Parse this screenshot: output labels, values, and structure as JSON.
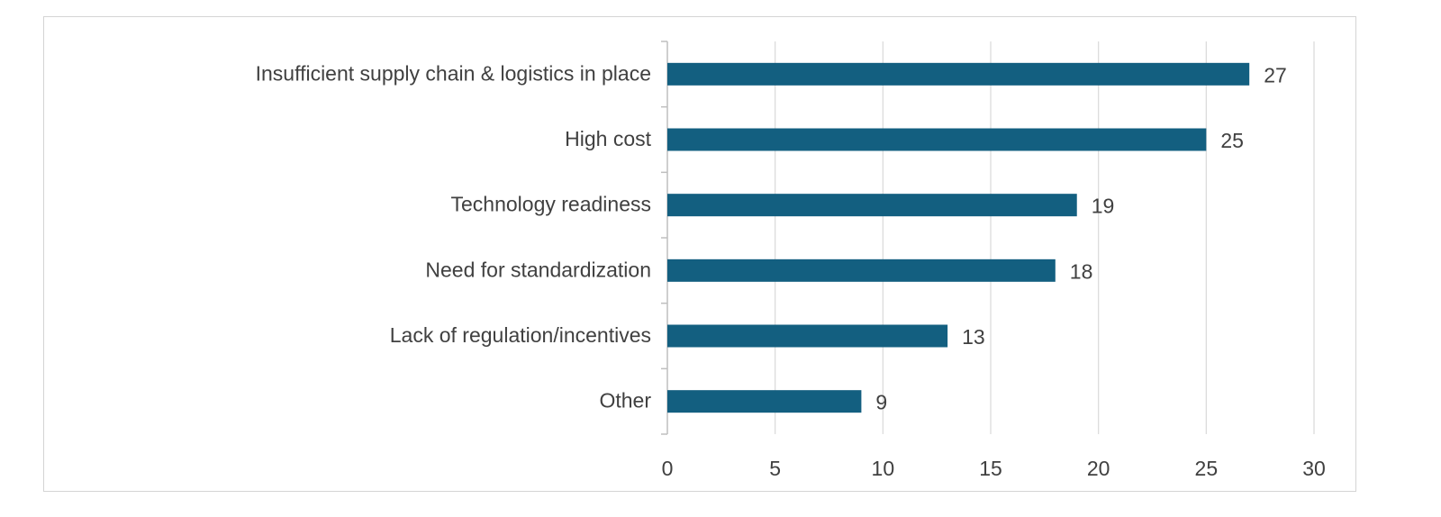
{
  "chart_data": {
    "type": "bar",
    "orientation": "horizontal",
    "title": "",
    "xlabel": "",
    "ylabel": "",
    "categories": [
      "Insufficient supply chain & logistics in place",
      "High cost",
      "Technology readiness",
      "Need for standardization",
      "Lack of regulation/incentives",
      "Other"
    ],
    "values": [
      27,
      25,
      19,
      18,
      13,
      9
    ],
    "data_labels": [
      "27",
      "25",
      "19",
      "18",
      "13",
      "9"
    ],
    "xlim": [
      0,
      30
    ],
    "x_ticks": [
      0,
      5,
      10,
      15,
      20,
      25,
      30
    ],
    "x_tick_labels": [
      "0",
      "5",
      "10",
      "15",
      "20",
      "25",
      "30"
    ],
    "grid": "vertical",
    "legend": "none",
    "colors": {
      "bar": "#135f80",
      "gridline": "#d9d9d9",
      "axis": "#bfbfbf",
      "text": "#404040",
      "border": "#d4d4d4"
    }
  }
}
